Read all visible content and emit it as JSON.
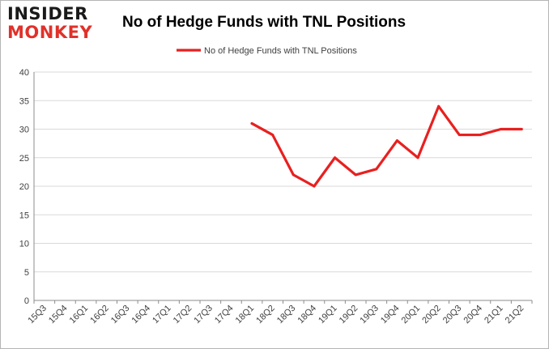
{
  "logo": {
    "top": "INSIDER",
    "bottom": "MONKEY"
  },
  "colors": {
    "series": "#e82020",
    "grid": "#d9d9d9",
    "axis": "#8c8c8c",
    "logo_red": "#e0312a"
  },
  "chart_data": {
    "type": "line",
    "title": "No of Hedge Funds with TNL Positions",
    "xlabel": "",
    "ylabel": "",
    "ylim": [
      0,
      40
    ],
    "yticks": [
      0,
      5,
      10,
      15,
      20,
      25,
      30,
      35,
      40
    ],
    "grid": true,
    "legend_position": "top-center",
    "categories": [
      "15Q3",
      "15Q4",
      "16Q1",
      "16Q2",
      "16Q3",
      "16Q4",
      "17Q1",
      "17Q2",
      "17Q3",
      "17Q4",
      "18Q1",
      "18Q2",
      "18Q3",
      "18Q4",
      "19Q1",
      "19Q2",
      "19Q3",
      "19Q4",
      "20Q1",
      "20Q2",
      "20Q3",
      "20Q4",
      "21Q1",
      "21Q2"
    ],
    "series": [
      {
        "name": "No of Hedge Funds with TNL Positions",
        "values": [
          null,
          null,
          null,
          null,
          null,
          null,
          null,
          null,
          null,
          null,
          31,
          29,
          22,
          20,
          25,
          22,
          23,
          28,
          25,
          34,
          29,
          29,
          30,
          30
        ]
      }
    ]
  }
}
